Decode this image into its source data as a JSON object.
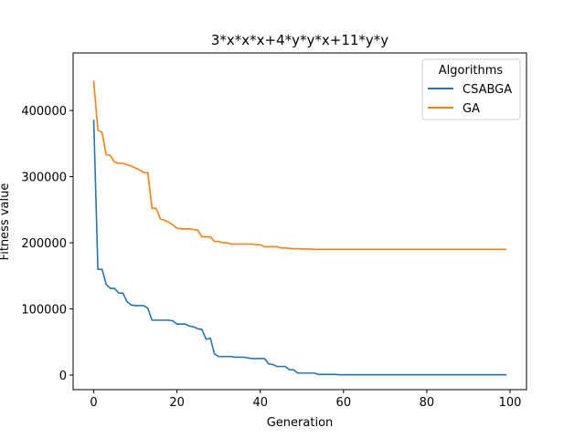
{
  "chart_data": {
    "type": "line",
    "title": "3*x*x*x+4*y*y*x+11*y*y",
    "xlabel": "Generation",
    "ylabel": "Fitness value",
    "xlim": [
      -4.95,
      103.95
    ],
    "ylim": [
      -22000,
      487000
    ],
    "xticks": [
      0,
      20,
      40,
      60,
      80,
      100
    ],
    "yticks": [
      0,
      100000,
      200000,
      300000,
      400000
    ],
    "grid": false,
    "legend": {
      "title": "Algorithms",
      "placement": "upper right"
    },
    "series": [
      {
        "name": "CSABGA",
        "color": "#1f77b4",
        "x": [
          0,
          1,
          2,
          3,
          4,
          5,
          6,
          7,
          8,
          9,
          10,
          11,
          12,
          13,
          14,
          15,
          16,
          17,
          18,
          19,
          20,
          21,
          22,
          23,
          24,
          25,
          26,
          27,
          28,
          29,
          30,
          31,
          32,
          33,
          34,
          35,
          36,
          37,
          38,
          39,
          40,
          41,
          42,
          43,
          44,
          45,
          46,
          47,
          48,
          49,
          50,
          51,
          52,
          53,
          54,
          55,
          56,
          57,
          58,
          59,
          60,
          61,
          62,
          63,
          64,
          65,
          66,
          67,
          68,
          69,
          70,
          71,
          72,
          73,
          74,
          75,
          76,
          77,
          78,
          79,
          80,
          81,
          82,
          83,
          84,
          85,
          86,
          87,
          88,
          89,
          90,
          91,
          92,
          93,
          94,
          95,
          96,
          97,
          98,
          99
        ],
        "y": [
          385000,
          160000,
          160000,
          137000,
          131000,
          131000,
          124000,
          124000,
          111000,
          106000,
          105000,
          105000,
          105000,
          101000,
          83000,
          83000,
          83000,
          83000,
          83000,
          82000,
          77000,
          77000,
          77000,
          74000,
          73000,
          70000,
          69000,
          54000,
          56000,
          32000,
          28000,
          28000,
          28000,
          28000,
          27000,
          27000,
          27000,
          26000,
          25000,
          25000,
          25000,
          25000,
          17000,
          16000,
          13000,
          13000,
          13000,
          8000,
          8000,
          3000,
          3000,
          3000,
          3000,
          3000,
          1000,
          1000,
          1000,
          1000,
          1000,
          500,
          500,
          500,
          500,
          500,
          500,
          500,
          500,
          500,
          500,
          500,
          500,
          500,
          500,
          500,
          500,
          500,
          500,
          500,
          500,
          500,
          500,
          500,
          500,
          500,
          500,
          500,
          500,
          500,
          500,
          500,
          500,
          500,
          500,
          500,
          500,
          500,
          500,
          500,
          500,
          500
        ]
      },
      {
        "name": "GA",
        "color": "#ff7f0e",
        "x": [
          0,
          1,
          2,
          3,
          4,
          5,
          6,
          7,
          8,
          9,
          10,
          11,
          12,
          13,
          14,
          15,
          16,
          17,
          18,
          19,
          20,
          21,
          22,
          23,
          24,
          25,
          26,
          27,
          28,
          29,
          30,
          31,
          32,
          33,
          34,
          35,
          36,
          37,
          38,
          39,
          40,
          41,
          42,
          43,
          44,
          45,
          46,
          47,
          48,
          49,
          50,
          51,
          52,
          53,
          54,
          55,
          56,
          57,
          58,
          59,
          60,
          61,
          62,
          63,
          64,
          65,
          66,
          67,
          68,
          69,
          70,
          71,
          72,
          73,
          74,
          75,
          76,
          77,
          78,
          79,
          80,
          81,
          82,
          83,
          84,
          85,
          86,
          87,
          88,
          89,
          90,
          91,
          92,
          93,
          94,
          95,
          96,
          97,
          98,
          99
        ],
        "y": [
          444000,
          370000,
          367000,
          333000,
          332000,
          322000,
          320000,
          320000,
          318000,
          316000,
          313000,
          310000,
          306000,
          306000,
          252000,
          252000,
          236000,
          234000,
          231000,
          227000,
          222000,
          221000,
          221000,
          221000,
          220000,
          219000,
          209000,
          209000,
          209000,
          202000,
          202000,
          200000,
          200000,
          198000,
          198000,
          198000,
          198000,
          198000,
          198000,
          197000,
          197000,
          194000,
          194000,
          194000,
          194000,
          192000,
          192000,
          191500,
          191000,
          191000,
          190500,
          190500,
          190500,
          190000,
          190000,
          190000,
          190000,
          190000,
          190000,
          190000,
          190000,
          190000,
          190000,
          190000,
          190000,
          190000,
          190000,
          190000,
          190000,
          190000,
          190000,
          190000,
          190000,
          190000,
          190000,
          190000,
          190000,
          190000,
          190000,
          190000,
          190000,
          190000,
          190000,
          190000,
          190000,
          190000,
          190000,
          190000,
          190000,
          190000,
          190000,
          190000,
          190000,
          190000,
          190000,
          190000,
          190000,
          190000,
          190000,
          190000
        ]
      }
    ]
  }
}
